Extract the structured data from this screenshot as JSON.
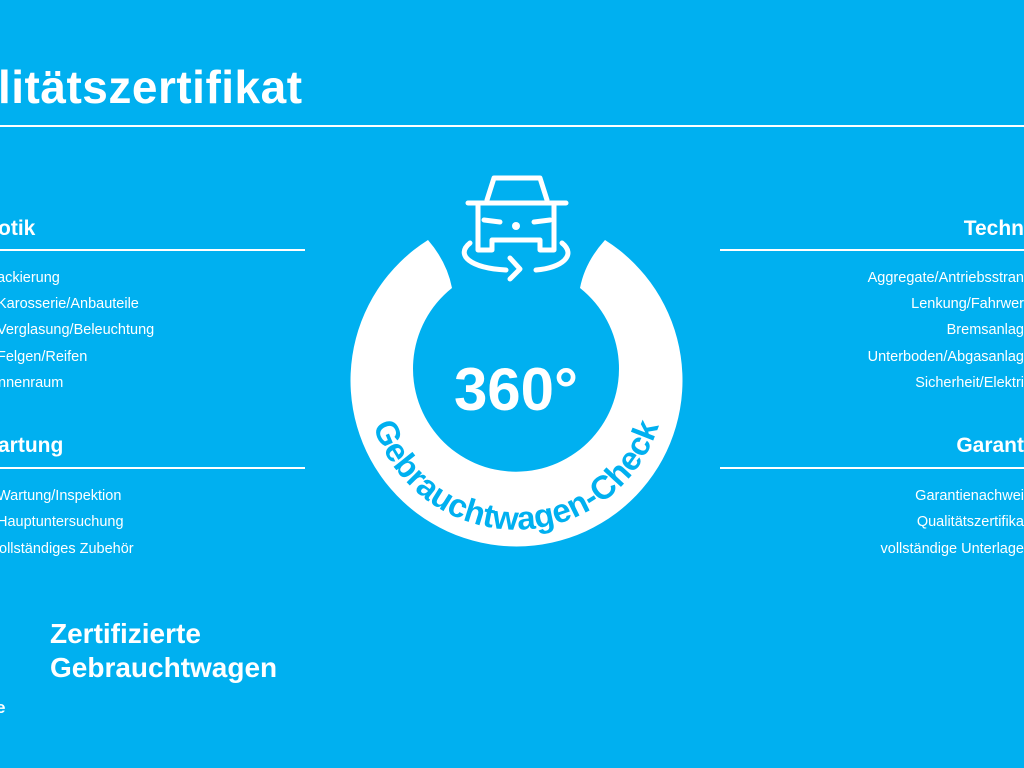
{
  "page": {
    "title": "litätszertifikat",
    "background_color": "#00b0f0",
    "text_color": "#ffffff"
  },
  "left": {
    "sections": [
      {
        "heading": "otik",
        "items": [
          "ackierung",
          "Karosserie/Anbauteile",
          "Verglasung/Beleuchtung",
          "Felgen/Reifen",
          "nnenraum"
        ]
      },
      {
        "heading": "artung",
        "items": [
          "Wartung/Inspektion",
          "Hauptuntersuchung",
          "ollständiges Zubehör"
        ]
      }
    ]
  },
  "right": {
    "sections": [
      {
        "heading": "Techn",
        "items": [
          "Aggregate/Antriebsstran",
          "Lenkung/Fahrwer",
          "Bremsanlag",
          "Unterboden/Abgasanlag",
          "Sicherheit/Elektri"
        ]
      },
      {
        "heading": "Garant",
        "items": [
          "Garantienachwei",
          "Qualitätszertifika",
          "vollständige Unterlage"
        ]
      }
    ]
  },
  "badge": {
    "number": "360°",
    "ring_text": "Gebrauchtwagen-Check",
    "icon": "car-360-rotate-icon"
  },
  "footer": {
    "line1": "Zertifizierte",
    "line2": "Gebrauchtwagen",
    "fragment": "e"
  }
}
